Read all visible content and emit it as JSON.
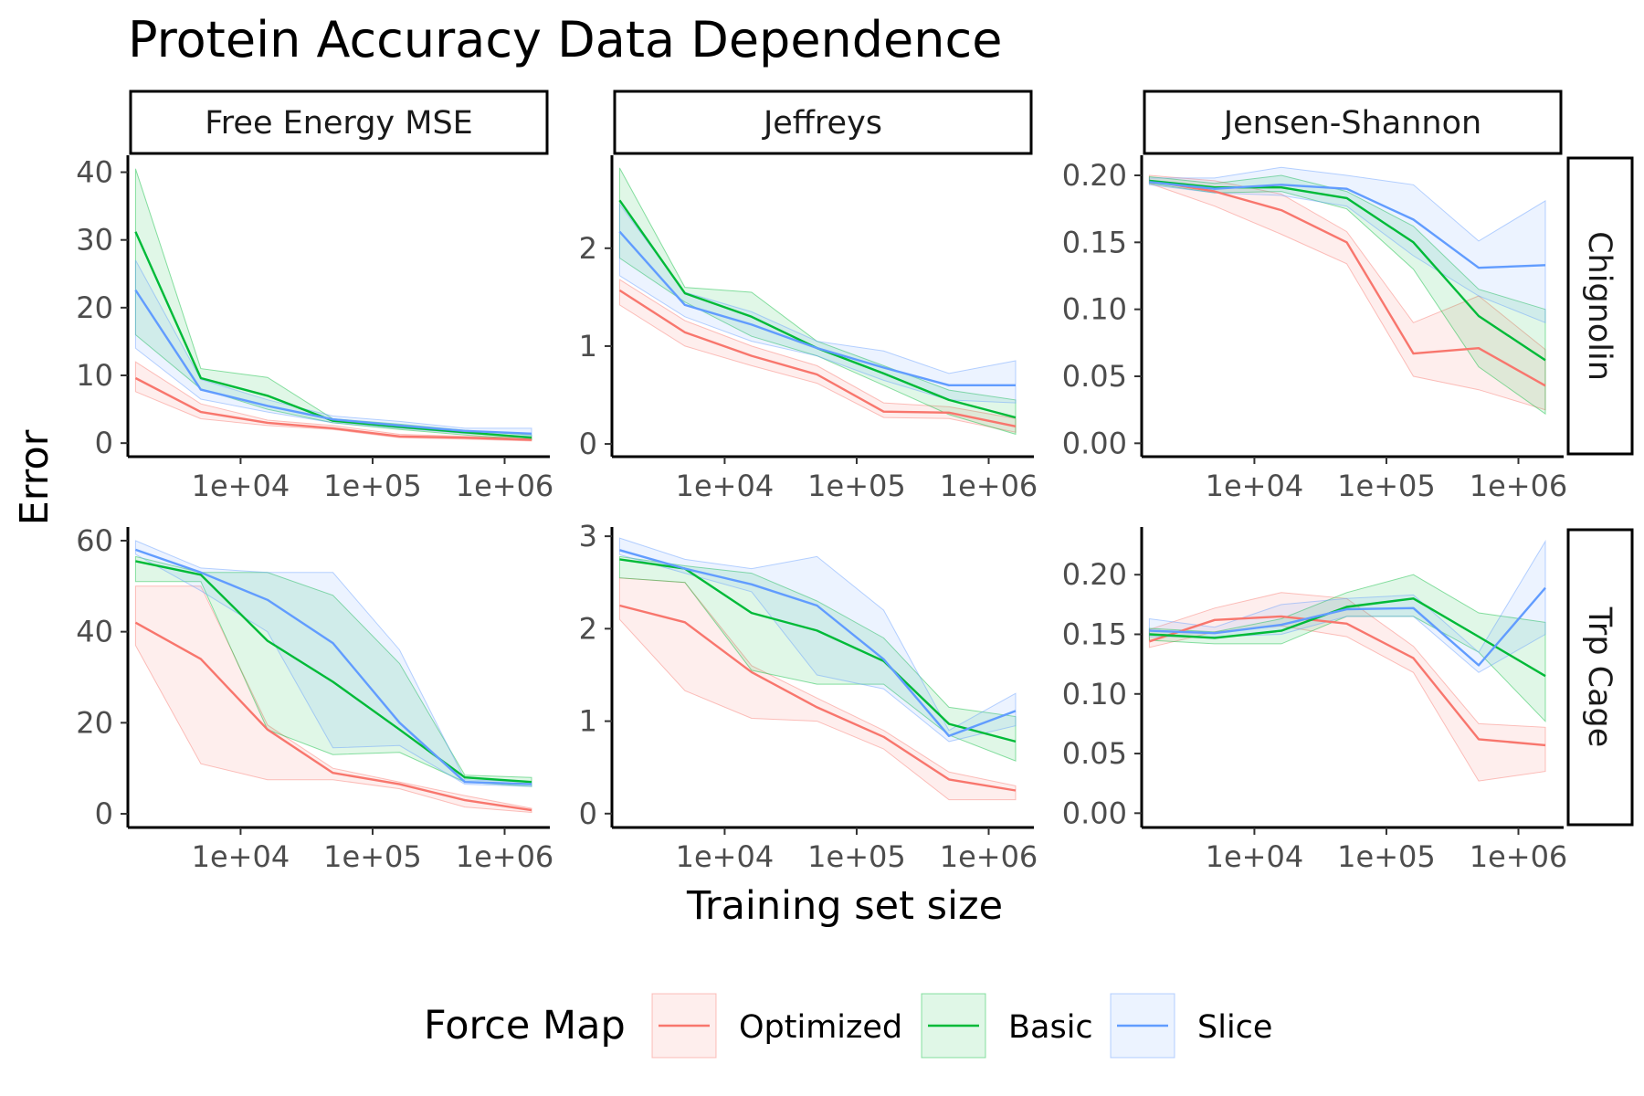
{
  "chart_data": {
    "type": "line",
    "title": "Protein Accuracy Data Dependence",
    "xlabel": "Training set size",
    "ylabel": "Error",
    "x_scale": "log",
    "x_range": [
      1400,
      2200000
    ],
    "x_ticks": [
      10000,
      100000,
      1000000
    ],
    "x_tick_labels": [
      "1e+04",
      "1e+05",
      "1e+06"
    ],
    "x": [
      1600,
      5000,
      16000,
      50000,
      160000,
      500000,
      1600000
    ],
    "columns": [
      "Free Energy MSE",
      "Jeffreys",
      "Jensen-Shannon"
    ],
    "rows": [
      "Chignolin",
      "Trp Cage"
    ],
    "legend": {
      "title": "Force Map",
      "position": "bottom",
      "entries": [
        "Optimized",
        "Basic",
        "Slice"
      ]
    },
    "series_colors": {
      "Optimized": "#F8766D",
      "Basic": "#00BA38",
      "Slice": "#619CFF"
    },
    "y_axes": {
      "Chignolin": {
        "Free Energy MSE": {
          "ylim": [
            -2,
            42.5
          ],
          "ticks": [
            0,
            10,
            20,
            30,
            40
          ],
          "tick_labels": [
            "0",
            "10",
            "20",
            "30",
            "40"
          ]
        },
        "Jeffreys": {
          "ylim": [
            -0.13,
            2.95
          ],
          "ticks": [
            0,
            1,
            2
          ],
          "tick_labels": [
            "0",
            "1",
            "2"
          ]
        },
        "Jensen-Shannon": {
          "ylim": [
            -0.01,
            0.215
          ],
          "ticks": [
            0,
            0.05,
            0.1,
            0.15,
            0.2
          ],
          "tick_labels": [
            "0.00",
            "0.05",
            "0.10",
            "0.15",
            "0.20"
          ]
        }
      },
      "Trp Cage": {
        "Free Energy MSE": {
          "ylim": [
            -3,
            63
          ],
          "ticks": [
            0,
            20,
            40,
            60
          ],
          "tick_labels": [
            "0",
            "20",
            "40",
            "60"
          ]
        },
        "Jeffreys": {
          "ylim": [
            -0.15,
            3.1
          ],
          "ticks": [
            0,
            1,
            2,
            3
          ],
          "tick_labels": [
            "0",
            "1",
            "2",
            "3"
          ]
        },
        "Jensen-Shannon": {
          "ylim": [
            -0.012,
            0.24
          ],
          "ticks": [
            0,
            0.05,
            0.1,
            0.15,
            0.2
          ],
          "tick_labels": [
            "0.00",
            "0.05",
            "0.10",
            "0.15",
            "0.20"
          ]
        }
      }
    },
    "panels": [
      {
        "row": "Chignolin",
        "column": "Free Energy MSE",
        "series": [
          {
            "name": "Optimized",
            "values": [
              9.6,
              4.6,
              3.0,
              2.2,
              1.0,
              0.8,
              0.5
            ],
            "lower": [
              7.6,
              3.6,
              2.6,
              2.0,
              0.8,
              0.6,
              0.3
            ],
            "upper": [
              12.0,
              5.8,
              3.4,
              2.6,
              1.3,
              1.0,
              0.8
            ]
          },
          {
            "name": "Basic",
            "values": [
              31.2,
              9.6,
              7.0,
              3.3,
              2.4,
              1.6,
              0.8
            ],
            "lower": [
              16.0,
              8.0,
              5.0,
              3.0,
              2.0,
              1.2,
              0.5
            ],
            "upper": [
              40.5,
              11.0,
              9.7,
              3.6,
              2.8,
              1.9,
              1.2
            ]
          },
          {
            "name": "Slice",
            "values": [
              22.6,
              7.9,
              5.5,
              3.5,
              2.6,
              1.8,
              1.4
            ],
            "lower": [
              14.0,
              6.5,
              4.6,
              3.0,
              2.2,
              1.4,
              1.0
            ],
            "upper": [
              27.0,
              9.4,
              6.4,
              4.0,
              3.2,
              2.2,
              2.2
            ]
          }
        ]
      },
      {
        "row": "Chignolin",
        "column": "Jeffreys",
        "series": [
          {
            "name": "Optimized",
            "values": [
              1.57,
              1.14,
              0.9,
              0.71,
              0.33,
              0.32,
              0.18
            ],
            "lower": [
              1.42,
              1.0,
              0.8,
              0.62,
              0.27,
              0.26,
              0.12
            ],
            "upper": [
              1.68,
              1.26,
              1.0,
              0.8,
              0.42,
              0.38,
              0.26
            ]
          },
          {
            "name": "Basic",
            "values": [
              2.49,
              1.54,
              1.3,
              0.98,
              0.72,
              0.45,
              0.27
            ],
            "lower": [
              1.9,
              1.45,
              1.1,
              0.9,
              0.6,
              0.3,
              0.1
            ],
            "upper": [
              2.82,
              1.6,
              1.55,
              1.05,
              0.8,
              0.55,
              0.45
            ]
          },
          {
            "name": "Slice",
            "values": [
              2.17,
              1.42,
              1.22,
              0.98,
              0.78,
              0.6,
              0.6
            ],
            "lower": [
              1.72,
              1.3,
              1.05,
              0.9,
              0.65,
              0.45,
              0.42
            ],
            "upper": [
              2.45,
              1.55,
              1.35,
              1.05,
              0.95,
              0.72,
              0.85
            ]
          }
        ]
      },
      {
        "row": "Chignolin",
        "column": "Jensen-Shannon",
        "series": [
          {
            "name": "Optimized",
            "values": [
              0.196,
              0.188,
              0.174,
              0.15,
              0.067,
              0.071,
              0.043
            ],
            "lower": [
              0.194,
              0.177,
              0.156,
              0.134,
              0.05,
              0.04,
              0.025
            ],
            "upper": [
              0.2,
              0.196,
              0.186,
              0.158,
              0.09,
              0.11,
              0.07
            ]
          },
          {
            "name": "Basic",
            "values": [
              0.196,
              0.191,
              0.191,
              0.183,
              0.15,
              0.095,
              0.062
            ],
            "lower": [
              0.194,
              0.187,
              0.188,
              0.175,
              0.13,
              0.057,
              0.022
            ],
            "upper": [
              0.199,
              0.194,
              0.2,
              0.188,
              0.162,
              0.115,
              0.1
            ]
          },
          {
            "name": "Slice",
            "values": [
              0.195,
              0.19,
              0.193,
              0.19,
              0.167,
              0.131,
              0.133
            ],
            "lower": [
              0.193,
              0.187,
              0.185,
              0.177,
              0.14,
              0.11,
              0.09
            ],
            "upper": [
              0.198,
              0.198,
              0.206,
              0.2,
              0.193,
              0.151,
              0.181
            ]
          }
        ]
      },
      {
        "row": "Trp Cage",
        "column": "Free Energy MSE",
        "series": [
          {
            "name": "Optimized",
            "values": [
              42.0,
              34.0,
              18.5,
              9.0,
              6.5,
              3.0,
              0.8
            ],
            "lower": [
              37.0,
              11.0,
              7.5,
              7.5,
              5.5,
              1.5,
              0.3
            ],
            "upper": [
              50.0,
              50.0,
              19.5,
              10.0,
              7.0,
              4.0,
              1.2
            ]
          },
          {
            "name": "Basic",
            "values": [
              55.5,
              52.5,
              38.0,
              29.0,
              18.5,
              8.0,
              7.0
            ],
            "lower": [
              51.0,
              51.0,
              18.5,
              13.0,
              13.5,
              7.0,
              6.0
            ],
            "upper": [
              56.5,
              53.0,
              53.0,
              48.0,
              33.0,
              8.5,
              8.0
            ]
          },
          {
            "name": "Slice",
            "values": [
              58.0,
              53.0,
              47.0,
              37.5,
              20.0,
              7.0,
              6.5
            ],
            "lower": [
              57.0,
              49.0,
              40.0,
              14.5,
              15.0,
              6.5,
              6.0
            ],
            "upper": [
              60.0,
              54.0,
              53.0,
              53.0,
              36.0,
              7.5,
              7.0
            ]
          }
        ]
      },
      {
        "row": "Trp Cage",
        "column": "Jeffreys",
        "series": [
          {
            "name": "Optimized",
            "values": [
              2.25,
              2.07,
              1.53,
              1.15,
              0.83,
              0.37,
              0.25
            ],
            "lower": [
              2.1,
              1.33,
              1.03,
              1.0,
              0.7,
              0.15,
              0.15
            ],
            "upper": [
              2.55,
              2.5,
              1.6,
              1.25,
              0.9,
              0.45,
              0.3
            ]
          },
          {
            "name": "Basic",
            "values": [
              2.75,
              2.65,
              2.17,
              1.98,
              1.65,
              0.97,
              0.78
            ],
            "lower": [
              2.55,
              2.5,
              1.55,
              1.4,
              1.4,
              0.85,
              0.57
            ],
            "upper": [
              2.78,
              2.68,
              2.6,
              2.3,
              1.9,
              1.15,
              1.05
            ]
          },
          {
            "name": "Slice",
            "values": [
              2.85,
              2.65,
              2.48,
              2.25,
              1.67,
              0.84,
              1.11
            ],
            "lower": [
              2.8,
              2.6,
              2.4,
              1.5,
              1.35,
              0.78,
              0.95
            ],
            "upper": [
              2.98,
              2.75,
              2.65,
              2.78,
              2.2,
              0.9,
              1.3
            ]
          }
        ]
      },
      {
        "row": "Trp Cage",
        "column": "Jensen-Shannon",
        "series": [
          {
            "name": "Optimized",
            "values": [
              0.144,
              0.162,
              0.165,
              0.159,
              0.13,
              0.062,
              0.057
            ],
            "lower": [
              0.139,
              0.152,
              0.157,
              0.148,
              0.118,
              0.027,
              0.035
            ],
            "upper": [
              0.154,
              0.172,
              0.185,
              0.18,
              0.14,
              0.075,
              0.072
            ]
          },
          {
            "name": "Basic",
            "values": [
              0.15,
              0.147,
              0.153,
              0.173,
              0.18,
              0.148,
              0.115
            ],
            "lower": [
              0.145,
              0.142,
              0.142,
              0.165,
              0.165,
              0.135,
              0.077
            ],
            "upper": [
              0.155,
              0.152,
              0.163,
              0.185,
              0.2,
              0.168,
              0.16
            ]
          },
          {
            "name": "Slice",
            "values": [
              0.153,
              0.151,
              0.158,
              0.171,
              0.172,
              0.124,
              0.189
            ],
            "lower": [
              0.148,
              0.148,
              0.15,
              0.165,
              0.165,
              0.118,
              0.15
            ],
            "upper": [
              0.163,
              0.156,
              0.175,
              0.18,
              0.183,
              0.135,
              0.228
            ]
          }
        ]
      }
    ]
  }
}
